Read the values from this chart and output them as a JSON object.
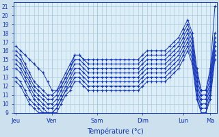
{
  "xlabel": "Température (°c)",
  "bg_color": "#cce0ee",
  "plot_bg_color": "#ddeef8",
  "grid_color": "#aaccdd",
  "line_color": "#1133bb",
  "ylim": [
    9,
    21.5
  ],
  "ytick_min": 9,
  "ytick_max": 21,
  "day_labels": [
    "Jeu",
    "Ven",
    "Sam",
    "Dim",
    "Lun",
    "Ma"
  ],
  "day_x": [
    0,
    8,
    18,
    28,
    37,
    43
  ],
  "total_points": 45,
  "series": [
    [
      16.5,
      16.0,
      15.5,
      15.0,
      14.5,
      14.0,
      13.5,
      12.5,
      11.5,
      11.5,
      12.0,
      13.0,
      14.0,
      15.5,
      15.5,
      15.0,
      15.0,
      15.0,
      15.0,
      15.0,
      15.0,
      15.0,
      15.0,
      15.0,
      15.0,
      15.0,
      15.0,
      15.0,
      15.5,
      16.0,
      16.0,
      16.0,
      16.0,
      16.0,
      16.5,
      17.0,
      17.5,
      18.5,
      19.5,
      18.0,
      14.0,
      11.5,
      11.5,
      14.0,
      21.0
    ],
    [
      16.0,
      15.5,
      14.5,
      13.5,
      12.5,
      12.0,
      11.5,
      11.0,
      11.0,
      11.5,
      12.5,
      13.5,
      14.5,
      15.5,
      15.5,
      15.0,
      14.5,
      14.5,
      14.5,
      14.5,
      14.5,
      14.5,
      14.5,
      14.5,
      14.5,
      14.5,
      14.5,
      14.5,
      15.0,
      15.5,
      15.5,
      15.5,
      15.5,
      15.5,
      16.0,
      16.5,
      17.0,
      18.0,
      19.0,
      17.5,
      13.5,
      11.5,
      11.5,
      13.5,
      18.0
    ],
    [
      15.5,
      15.0,
      14.0,
      13.0,
      12.0,
      11.5,
      11.0,
      10.5,
      10.5,
      11.0,
      12.0,
      13.0,
      14.0,
      15.0,
      15.0,
      14.5,
      14.0,
      14.0,
      14.0,
      14.0,
      14.0,
      14.0,
      14.0,
      14.0,
      14.0,
      14.0,
      14.0,
      14.0,
      14.5,
      15.0,
      15.0,
      15.0,
      15.0,
      15.0,
      15.5,
      16.0,
      16.5,
      17.5,
      18.5,
      17.0,
      13.0,
      11.0,
      11.0,
      13.0,
      17.5
    ],
    [
      15.0,
      14.5,
      13.5,
      12.5,
      11.5,
      11.0,
      10.5,
      10.0,
      10.0,
      10.5,
      11.5,
      12.5,
      13.5,
      14.5,
      14.5,
      14.0,
      13.5,
      13.5,
      13.5,
      13.5,
      13.5,
      13.5,
      13.5,
      13.5,
      13.5,
      13.5,
      13.5,
      13.5,
      14.0,
      14.5,
      14.5,
      14.5,
      14.5,
      14.5,
      15.0,
      15.5,
      16.0,
      17.0,
      18.0,
      16.5,
      12.5,
      10.5,
      10.5,
      12.5,
      17.0
    ],
    [
      14.5,
      14.0,
      13.0,
      12.0,
      11.0,
      10.5,
      10.0,
      9.5,
      9.5,
      10.0,
      11.0,
      12.0,
      13.0,
      14.0,
      14.0,
      13.5,
      13.0,
      13.0,
      13.0,
      13.0,
      13.0,
      13.0,
      13.0,
      13.0,
      13.0,
      13.0,
      13.0,
      13.0,
      13.5,
      14.0,
      14.0,
      14.0,
      14.0,
      14.0,
      14.5,
      15.0,
      15.5,
      16.5,
      17.5,
      16.0,
      12.0,
      10.0,
      10.0,
      12.0,
      16.5
    ],
    [
      14.0,
      13.5,
      12.5,
      11.5,
      10.5,
      10.0,
      9.5,
      9.0,
      9.0,
      9.5,
      10.5,
      11.5,
      12.5,
      13.5,
      13.5,
      13.0,
      12.5,
      12.5,
      12.5,
      12.5,
      12.5,
      12.5,
      12.5,
      12.5,
      12.5,
      12.5,
      12.5,
      12.5,
      13.0,
      13.5,
      13.5,
      13.5,
      13.5,
      13.5,
      14.0,
      14.5,
      15.0,
      16.0,
      17.0,
      15.5,
      11.5,
      9.5,
      9.5,
      11.5,
      16.0
    ],
    [
      13.0,
      12.5,
      11.5,
      10.5,
      10.0,
      9.5,
      9.0,
      9.0,
      9.0,
      9.5,
      10.5,
      11.5,
      12.0,
      13.0,
      13.0,
      12.5,
      12.0,
      12.0,
      12.0,
      12.0,
      12.0,
      12.0,
      12.0,
      12.0,
      12.0,
      12.0,
      12.0,
      12.0,
      12.5,
      13.0,
      13.0,
      13.0,
      13.0,
      13.0,
      13.5,
      14.0,
      14.5,
      15.5,
      16.5,
      15.0,
      11.0,
      9.0,
      9.0,
      11.0,
      15.5
    ],
    [
      12.5,
      12.0,
      11.0,
      10.0,
      9.5,
      9.0,
      9.0,
      9.0,
      9.0,
      9.0,
      10.0,
      11.0,
      11.5,
      12.5,
      12.5,
      12.0,
      11.5,
      11.5,
      11.5,
      11.5,
      11.5,
      11.5,
      11.5,
      11.5,
      11.5,
      11.5,
      11.5,
      11.5,
      12.0,
      12.5,
      12.5,
      12.5,
      12.5,
      12.5,
      13.0,
      13.5,
      14.0,
      15.0,
      16.0,
      14.5,
      10.5,
      9.0,
      9.0,
      10.5,
      15.0
    ]
  ]
}
